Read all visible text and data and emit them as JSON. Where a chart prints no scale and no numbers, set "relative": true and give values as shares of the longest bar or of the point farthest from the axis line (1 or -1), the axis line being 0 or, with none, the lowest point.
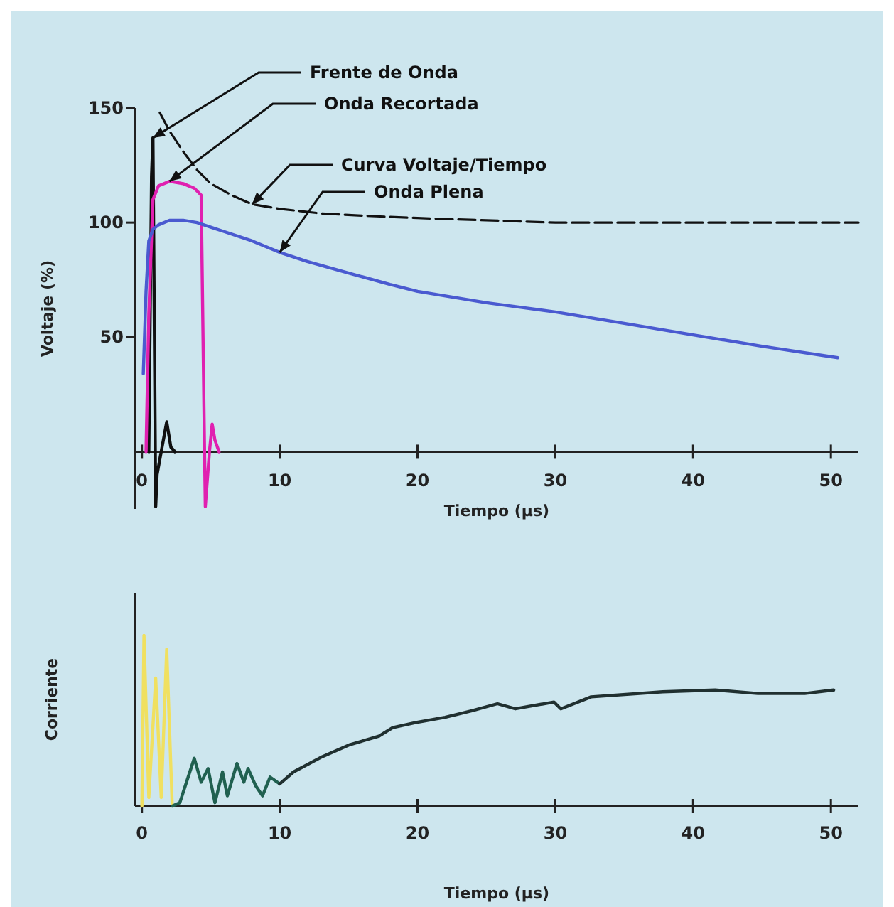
{
  "chart_data": [
    {
      "type": "line",
      "xlabel": "Tiempo (µs)",
      "ylabel": "Voltaje (%)",
      "xlim": [
        -0.5,
        52
      ],
      "ylim": [
        -25,
        150
      ],
      "xticks": [
        0,
        10,
        20,
        30,
        40,
        50
      ],
      "yticks": [
        50,
        100,
        150
      ],
      "grid": false,
      "series": [
        {
          "name": "Frente de Onda",
          "color": "#101010",
          "x": [
            0.5,
            0.7,
            0.8,
            1.0,
            1.1,
            1.4,
            1.8,
            2.1,
            2.4
          ],
          "values": [
            0,
            120,
            137,
            -24,
            -10,
            0,
            13,
            2,
            0
          ]
        },
        {
          "name": "Onda Recortada",
          "color": "#e020b0",
          "x": [
            0.3,
            0.5,
            0.8,
            1.2,
            2.0,
            3.0,
            3.8,
            4.3,
            4.5,
            4.6,
            4.9,
            5.1,
            5.3,
            5.6
          ],
          "values": [
            0,
            60,
            110,
            116,
            118,
            117,
            115,
            112,
            20,
            -24,
            0,
            12,
            5,
            0
          ]
        },
        {
          "name": "Curva Voltaje/Tiempo",
          "color": "#111111",
          "line_style": "dashed",
          "x": [
            1.3,
            2,
            3,
            4,
            5,
            6.5,
            8,
            10,
            13,
            16,
            20,
            25,
            30,
            40,
            52
          ],
          "values": [
            148,
            140,
            131,
            123,
            117,
            112,
            108,
            106,
            104,
            103,
            102,
            101,
            100,
            100,
            100
          ]
        },
        {
          "name": "Onda Plena",
          "color": "#4a5ad0",
          "x": [
            0.1,
            0.3,
            0.5,
            0.8,
            1.2,
            2,
            3,
            4,
            5,
            6,
            8,
            10,
            12,
            15,
            18,
            20,
            25,
            30,
            35,
            40,
            45,
            50.5
          ],
          "values": [
            34,
            70,
            92,
            97,
            99,
            101,
            101,
            100,
            98,
            96,
            92,
            87,
            83,
            78,
            73,
            70,
            65,
            61,
            56,
            51,
            46,
            41
          ]
        }
      ]
    },
    {
      "type": "line",
      "xlabel": "Tiempo (µs)",
      "ylabel": "Corriente",
      "relative": true,
      "xlim": [
        -0.5,
        52
      ],
      "xticks": [
        0,
        10,
        20,
        30,
        40,
        50
      ],
      "tick_labels": "x",
      "grid": false,
      "series": [
        {
          "color": "#f0e060",
          "x": [
            0,
            0.15,
            0.5,
            1.0,
            1.4,
            1.8,
            2.2
          ],
          "values": [
            0,
            1,
            0.05,
            0.75,
            0.05,
            0.92,
            0
          ]
        },
        {
          "color": "#206050",
          "x": [
            2.2,
            2.75,
            3.8,
            4.3,
            4.8,
            5.3,
            5.85,
            6.2,
            6.9,
            7.4,
            7.7,
            8.25,
            8.75,
            9.3,
            10.0
          ],
          "values": [
            0,
            0.02,
            0.28,
            0.14,
            0.22,
            0.02,
            0.2,
            0.06,
            0.25,
            0.14,
            0.22,
            0.12,
            0.06,
            0.17,
            0.13
          ]
        },
        {
          "color": "#203030",
          "x": [
            10.0,
            11,
            13.1,
            15.1,
            17.2,
            18.2,
            19.9,
            22,
            24,
            25.8,
            27.1,
            29.9,
            30.4,
            32.6,
            37.8,
            41.6,
            44.7,
            48.1,
            50.2
          ],
          "values": [
            0.13,
            0.2,
            0.29,
            0.36,
            0.41,
            0.46,
            0.49,
            0.52,
            0.56,
            0.6,
            0.57,
            0.61,
            0.57,
            0.64,
            0.67,
            0.68,
            0.66,
            0.66,
            0.68
          ]
        }
      ]
    }
  ]
}
